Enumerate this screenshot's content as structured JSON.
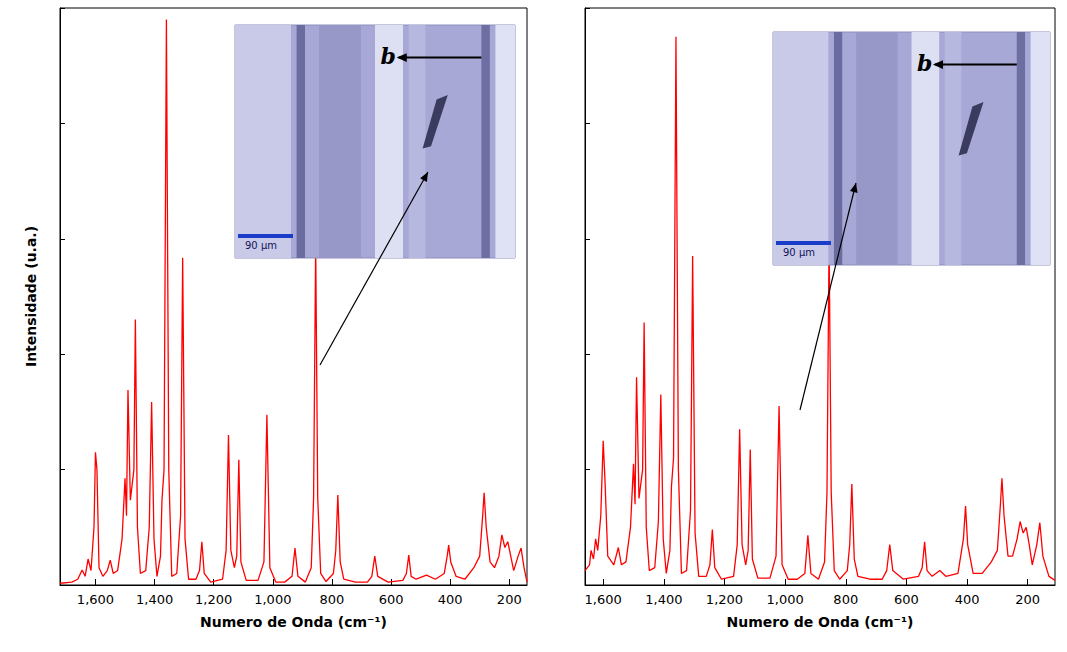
{
  "chart_data": [
    {
      "type": "line",
      "xlabel": "Numero de Onda (cm⁻¹)",
      "ylabel": "Intensidade (u.a.)",
      "xlim": [
        1720,
        140
      ],
      "ylim": [
        0,
        100
      ],
      "xticks": [
        1600,
        1400,
        1200,
        1000,
        800,
        600,
        400,
        200
      ],
      "yticks": [
        0,
        20,
        40,
        60,
        80,
        100
      ],
      "tick_labels": "x",
      "annotations": [
        "b",
        "90 µm"
      ],
      "series": [
        {
          "color": "#ff0000",
          "line_style": "solid",
          "x": [
            1720,
            1680,
            1660,
            1645,
            1635,
            1625,
            1615,
            1605,
            1600,
            1595,
            1588,
            1575,
            1560,
            1550,
            1540,
            1525,
            1510,
            1500,
            1495,
            1490,
            1482,
            1470,
            1465,
            1458,
            1448,
            1430,
            1418,
            1410,
            1402,
            1392,
            1380,
            1375,
            1368,
            1360,
            1352,
            1342,
            1325,
            1312,
            1305,
            1297,
            1285,
            1260,
            1248,
            1240,
            1232,
            1210,
            1170,
            1158,
            1150,
            1142,
            1130,
            1122,
            1115,
            1108,
            1090,
            1050,
            1030,
            1020,
            1010,
            990,
            960,
            935,
            925,
            915,
            890,
            870,
            862,
            855,
            848,
            838,
            820,
            795,
            787,
            780,
            772,
            760,
            720,
            680,
            665,
            655,
            645,
            610,
            560,
            548,
            540,
            532,
            515,
            480,
            450,
            420,
            410,
            405,
            398,
            380,
            350,
            320,
            300,
            290,
            285,
            278,
            265,
            250,
            235,
            225,
            215,
            205,
            195,
            185,
            170,
            160,
            150,
            140
          ],
          "values": [
            0.3,
            0.5,
            1.0,
            2.6,
            1.5,
            4.5,
            2.5,
            10,
            23,
            20,
            3,
            1.5,
            2.5,
            4.3,
            2,
            2.5,
            8,
            18.5,
            12,
            33.8,
            14.7,
            20,
            46,
            10,
            2,
            2.5,
            10,
            31.7,
            8,
            1.5,
            5,
            14.7,
            20,
            98,
            20,
            1.5,
            2,
            12,
            56.7,
            8,
            1,
            1,
            2.5,
            7.5,
            2,
            0.5,
            1,
            6,
            26,
            6,
            3,
            5,
            21.7,
            4,
            0.8,
            0.8,
            4,
            29.5,
            3,
            0.5,
            0.5,
            1.5,
            6.4,
            1.5,
            0.5,
            3,
            15,
            59,
            15,
            2,
            0.6,
            2,
            6,
            15.6,
            4,
            1,
            0.5,
            0.5,
            1.5,
            5,
            1.5,
            0.5,
            0.8,
            2,
            5.2,
            1.5,
            1,
            1.7,
            1,
            2,
            5,
            6.9,
            4,
            1.5,
            1,
            3,
            5,
            12,
            16,
            10,
            4,
            3,
            5,
            8.7,
            6.5,
            7.5,
            5,
            2.5,
            5,
            6.4,
            3,
            0.5
          ]
        }
      ]
    },
    {
      "type": "line",
      "xlabel": "Numero de Onda (cm⁻¹)",
      "xlim": [
        1660,
        110
      ],
      "ylim": [
        0,
        100
      ],
      "xticks": [
        1600,
        1400,
        1200,
        1000,
        800,
        600,
        400,
        200
      ],
      "yticks": [
        0,
        20,
        40,
        60,
        80,
        100
      ],
      "tick_labels": "x",
      "annotations": [
        "b",
        "90 µm"
      ],
      "series": [
        {
          "color": "#ff0000",
          "line_style": "solid",
          "x": [
            1660,
            1645,
            1640,
            1632,
            1625,
            1618,
            1608,
            1600,
            1594,
            1585,
            1565,
            1550,
            1540,
            1525,
            1510,
            1500,
            1495,
            1490,
            1482,
            1470,
            1465,
            1458,
            1448,
            1430,
            1418,
            1410,
            1402,
            1392,
            1380,
            1375,
            1368,
            1360,
            1352,
            1342,
            1325,
            1312,
            1305,
            1297,
            1285,
            1260,
            1248,
            1240,
            1232,
            1210,
            1170,
            1158,
            1150,
            1142,
            1130,
            1122,
            1115,
            1108,
            1090,
            1050,
            1030,
            1020,
            1010,
            990,
            960,
            935,
            925,
            915,
            890,
            870,
            862,
            855,
            848,
            838,
            820,
            795,
            787,
            780,
            772,
            760,
            720,
            680,
            665,
            655,
            645,
            610,
            560,
            548,
            540,
            532,
            515,
            490,
            470,
            430,
            412,
            405,
            398,
            380,
            350,
            320,
            300,
            290,
            285,
            278,
            265,
            250,
            235,
            225,
            215,
            205,
            195,
            185,
            170,
            160,
            150,
            130,
            110
          ],
          "values": [
            2.5,
            3.5,
            6,
            4.5,
            8,
            6,
            12,
            25,
            18,
            5,
            3.5,
            6.5,
            3.5,
            4,
            10,
            21,
            14,
            36,
            15,
            20,
            45.5,
            10,
            2.5,
            3,
            11,
            33,
            8,
            2,
            6,
            17,
            22,
            95,
            20,
            2,
            2.5,
            13,
            57,
            9,
            1.5,
            1.5,
            3.5,
            9.6,
            3,
            1,
            1.5,
            7,
            27,
            7,
            3.5,
            6,
            23.5,
            4.5,
            1.2,
            1.2,
            5,
            31,
            3.5,
            1,
            1,
            2,
            8.6,
            2,
            1,
            4,
            16,
            60,
            16,
            2.5,
            1,
            2.5,
            7,
            17.5,
            4.5,
            1.5,
            1,
            1,
            2.5,
            7,
            2.5,
            1,
            1.5,
            3,
            7.5,
            2.5,
            1.5,
            2.5,
            1.5,
            2,
            8,
            13.7,
            7,
            2,
            2,
            4,
            6,
            14,
            18.5,
            12,
            5,
            5,
            8,
            11,
            9,
            10,
            7,
            3.5,
            7,
            10.8,
            5,
            1.5,
            0.8
          ]
        }
      ]
    }
  ]
}
